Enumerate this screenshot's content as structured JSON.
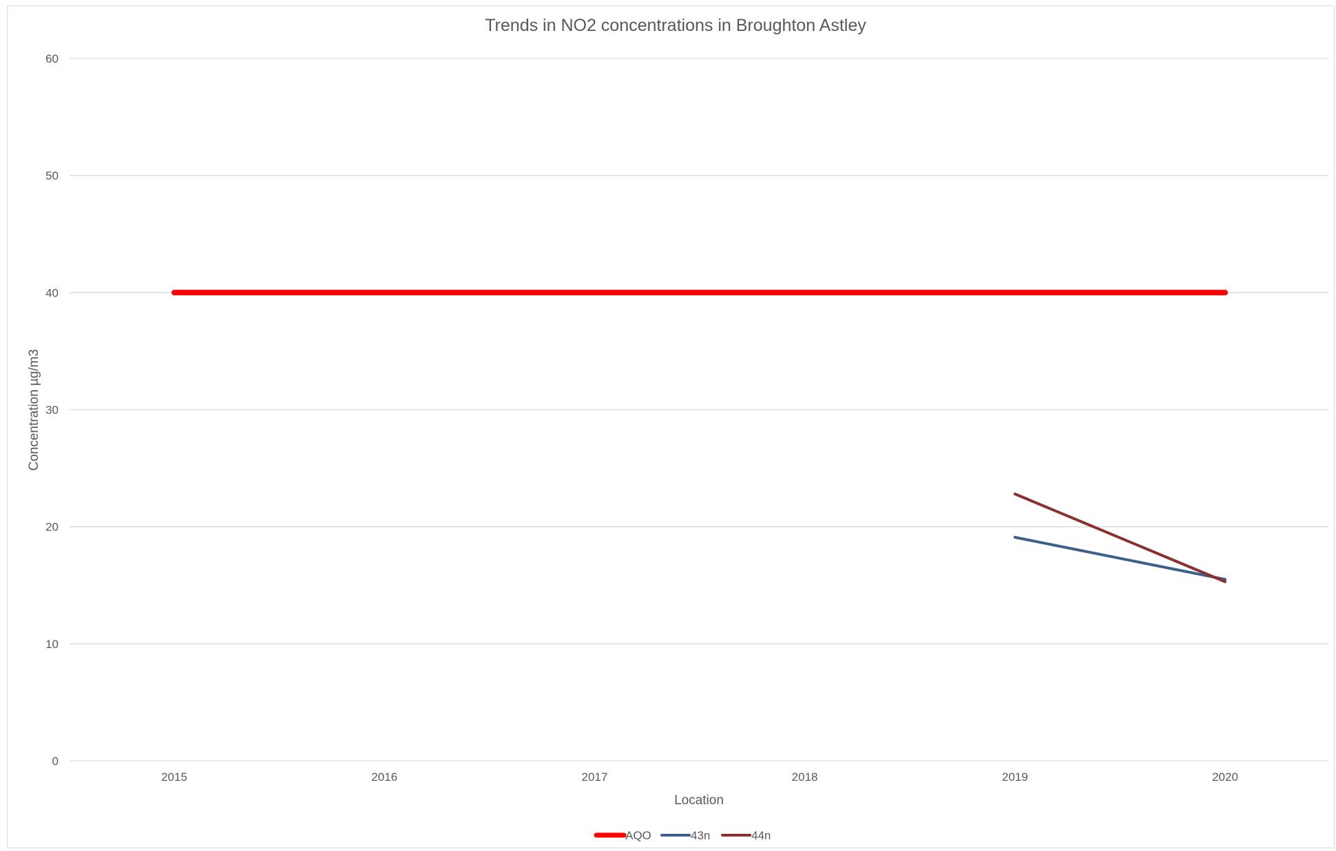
{
  "chart_data": {
    "type": "line",
    "title": "Trends in NO2 concentrations in Broughton Astley",
    "xlabel": "Location",
    "ylabel": "Concentration µg/m3",
    "categories": [
      "2015",
      "2016",
      "2017",
      "2018",
      "2019",
      "2020"
    ],
    "ylim": [
      0,
      60
    ],
    "yticks": [
      0,
      10,
      20,
      30,
      40,
      50,
      60
    ],
    "grid": "horizontal",
    "legend_position": "bottom",
    "series": [
      {
        "name": "AQO",
        "color": "#ff0000",
        "values": [
          40,
          40,
          40,
          40,
          40,
          40
        ]
      },
      {
        "name": "43n",
        "color": "#3d5f8e",
        "values": [
          null,
          null,
          null,
          null,
          19.1,
          15.5
        ]
      },
      {
        "name": "44n",
        "color": "#8b3030",
        "values": [
          null,
          null,
          null,
          null,
          22.8,
          15.3
        ]
      }
    ]
  }
}
